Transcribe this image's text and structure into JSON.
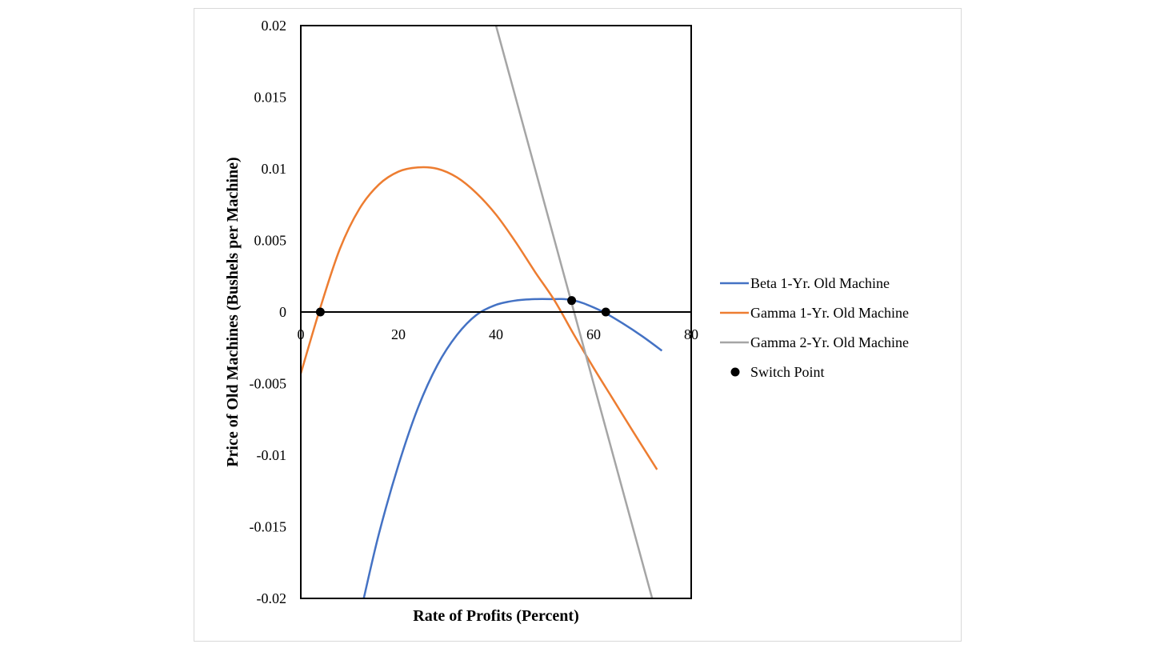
{
  "chart_data": {
    "type": "line",
    "xlabel": "Rate of Profits (Percent)",
    "ylabel": "Price of Old Machines (Bushels per Machine)",
    "xlim": [
      0,
      80
    ],
    "ylim": [
      -0.02,
      0.02
    ],
    "x_ticks": [
      "0",
      "20",
      "40",
      "60",
      "80"
    ],
    "y_ticks": [
      "0.02",
      "0.015",
      "0.01",
      "0.005",
      "0",
      "-0.005",
      "-0.01",
      "-0.015",
      "-0.02"
    ],
    "legend_position": "right",
    "series": [
      {
        "name": "Beta 1-Yr. Old Machine",
        "color": "#4472C4",
        "x": [
          12.9,
          16,
          20,
          24,
          28,
          32,
          36,
          40,
          44,
          48,
          52,
          54,
          56,
          58,
          62,
          66,
          70,
          74
        ],
        "y": [
          -0.02,
          -0.0155,
          -0.0107,
          -0.0067,
          -0.0037,
          -0.0016,
          -0.0002,
          0.0005,
          0.0008,
          0.0009,
          0.0009,
          0.0009,
          0.0008,
          0.0006,
          0.0,
          -0.0008,
          -0.0017,
          -0.0027
        ]
      },
      {
        "name": "Gamma 1-Yr. Old Machine",
        "color": "#ED7D31",
        "x": [
          0,
          4,
          8,
          12,
          16,
          20,
          24,
          28,
          32,
          36,
          40,
          44,
          48,
          52,
          56,
          60,
          64,
          68,
          73
        ],
        "y": [
          -0.0043,
          0.0003,
          0.0044,
          0.0072,
          0.0089,
          0.0098,
          0.0101,
          0.01,
          0.0094,
          0.0083,
          0.0068,
          0.0049,
          0.0028,
          0.0008,
          -0.0016,
          -0.0039,
          -0.0061,
          -0.0083,
          -0.011
        ]
      },
      {
        "name": "Gamma 2-Yr. Old Machine",
        "color": "#A5A5A5",
        "x": [
          40,
          72
        ],
        "y": [
          0.02,
          -0.02
        ]
      }
    ],
    "points": {
      "name": "Switch Point",
      "color": "#000000",
      "x": [
        4,
        55.5,
        62.5
      ],
      "y": [
        0,
        0.0008,
        0
      ]
    }
  }
}
